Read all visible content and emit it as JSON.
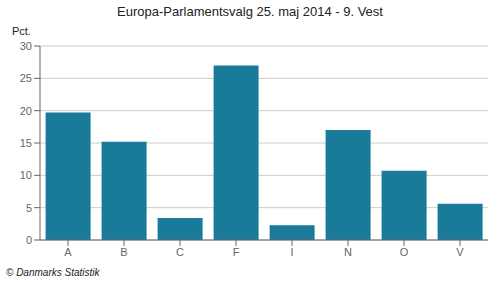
{
  "chart_data": {
    "type": "bar",
    "title": "Europa-Parlamentsvalg 25. maj 2014 - 9. Vest",
    "ylabel": "Pct.",
    "annotation": "© Danmarks Statistik",
    "categories": [
      "A",
      "B",
      "C",
      "F",
      "I",
      "N",
      "O",
      "V"
    ],
    "values": [
      19.7,
      15.2,
      3.4,
      27.0,
      2.3,
      17.0,
      10.7,
      5.6
    ],
    "color": "#1a7a9a",
    "ylim": [
      0,
      30
    ],
    "yticks": [
      0,
      5,
      10,
      15,
      20,
      25,
      30
    ],
    "grid": true
  }
}
